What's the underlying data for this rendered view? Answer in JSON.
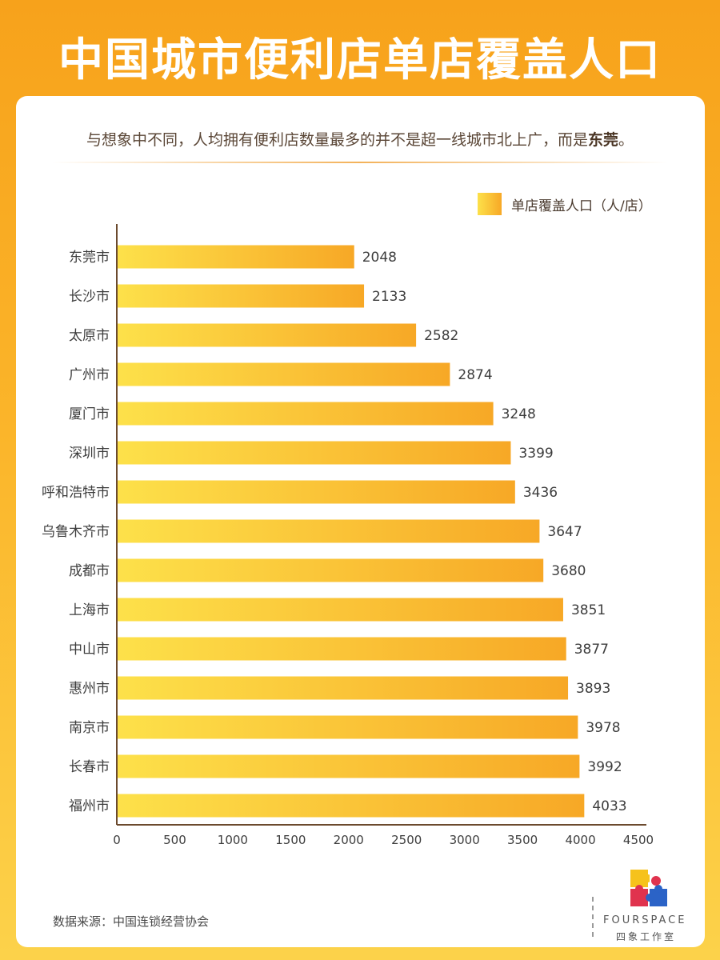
{
  "header": {
    "title": "中国城市便利店单店覆盖人口"
  },
  "intro": {
    "text": "与想象中不同，人均拥有便利店数量最多的并不是超一线城市北上广，而是",
    "highlight": "东莞",
    "end": "。"
  },
  "legend": {
    "label": "单店覆盖人口（人/店）"
  },
  "colors": {
    "bar_start": "#fde14a",
    "bar_end": "#f7a826",
    "axis": "#6b4a2e",
    "text": "#3d3d3d"
  },
  "chart_data": {
    "type": "bar",
    "orientation": "horizontal",
    "categories": [
      "东莞市",
      "长沙市",
      "太原市",
      "广州市",
      "厦门市",
      "深圳市",
      "呼和浩特市",
      "乌鲁木齐市",
      "成都市",
      "上海市",
      "中山市",
      "惠州市",
      "南京市",
      "长春市",
      "福州市"
    ],
    "values": [
      2048,
      2133,
      2582,
      2874,
      3248,
      3399,
      3436,
      3647,
      3680,
      3851,
      3877,
      3893,
      3978,
      3992,
      4033
    ],
    "series": [
      {
        "name": "单店覆盖人口（人/店）",
        "values": [
          2048,
          2133,
          2582,
          2874,
          3248,
          3399,
          3436,
          3647,
          3680,
          3851,
          3877,
          3893,
          3978,
          3992,
          4033
        ]
      }
    ],
    "xlim": [
      0,
      4500
    ],
    "xticks": [
      "0",
      "500",
      "1000",
      "1500",
      "2000",
      "2500",
      "3000",
      "3500",
      "4000",
      "4500"
    ],
    "grid": false,
    "legend_position": "top-right"
  },
  "footer": {
    "source": "数据来源：中国连锁经营协会"
  },
  "brand": {
    "name_en": "FOURSPACE",
    "name_cn": "四象工作室"
  }
}
